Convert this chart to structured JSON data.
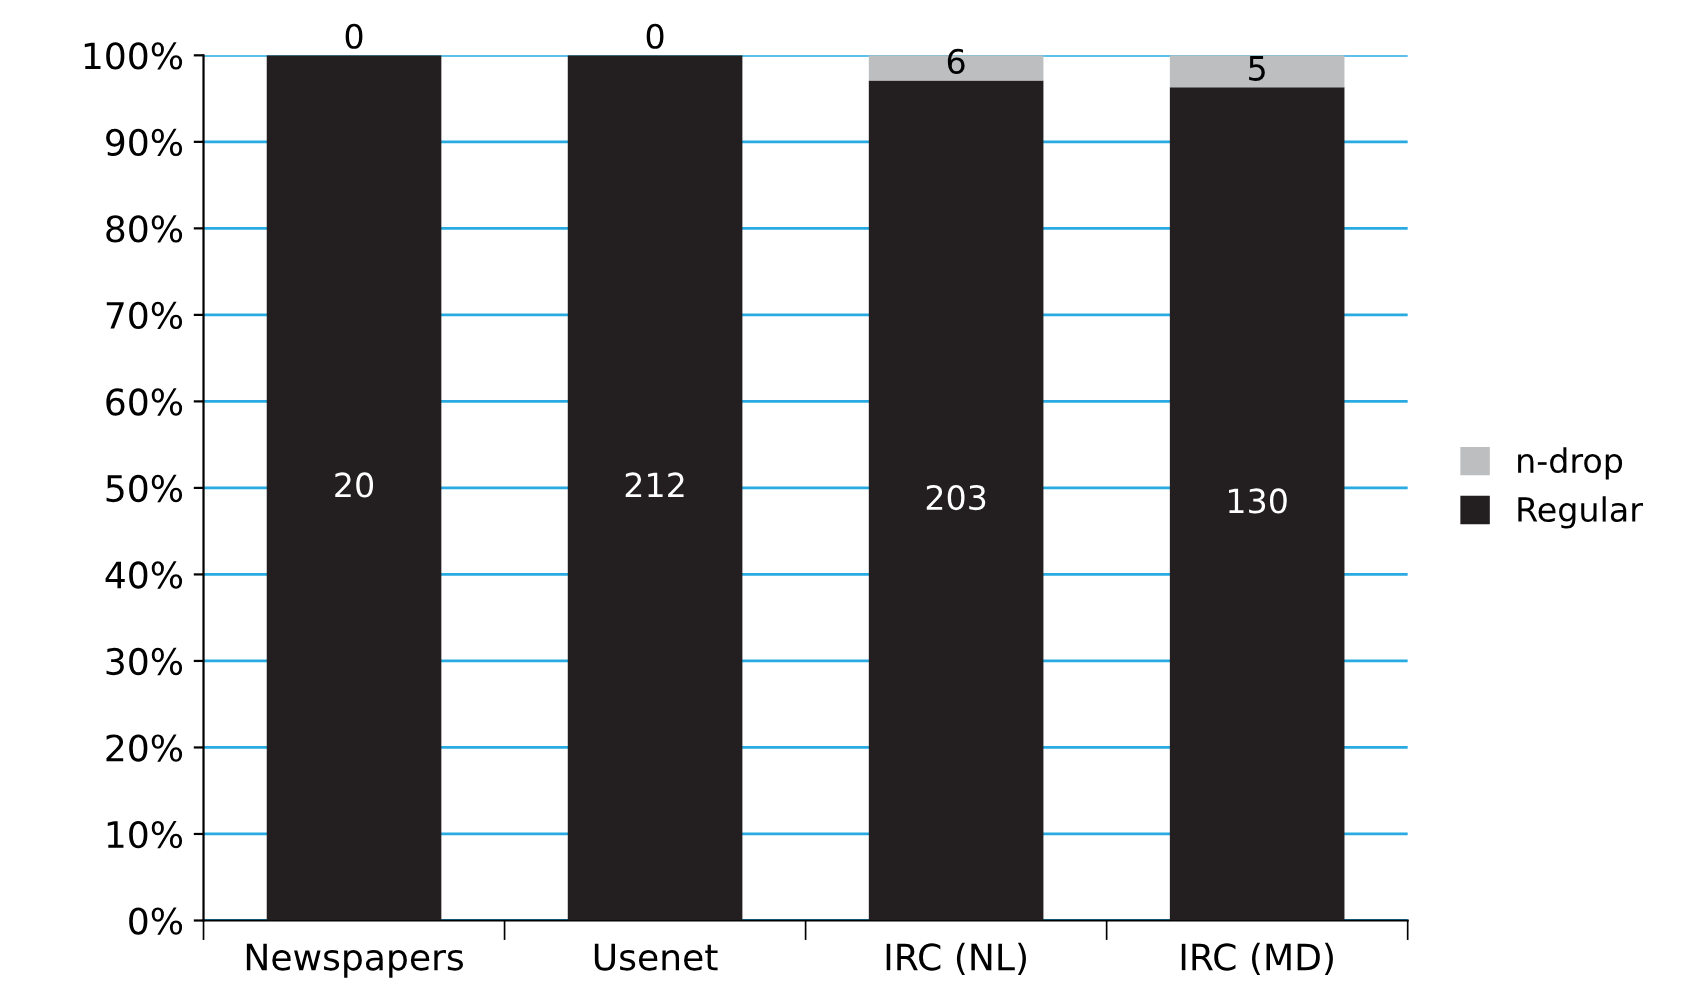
{
  "chart_data": {
    "type": "bar",
    "stacked": true,
    "categories": [
      "Newspapers",
      "Usenet",
      "IRC (NL)",
      "IRC (MD)"
    ],
    "series": [
      {
        "name": "Regular",
        "color": "#231f20",
        "values": [
          100,
          100,
          97.1,
          96.3
        ]
      },
      {
        "name": "n-drop",
        "color": "#bcbec0",
        "values": [
          0,
          0,
          2.9,
          3.7
        ]
      }
    ],
    "annotations": [
      "20",
      "212",
      "203",
      "130",
      "0",
      "0",
      "6",
      "5"
    ],
    "ylim": [
      0,
      100
    ],
    "yticks": [
      {
        "value": 0,
        "label": "0%"
      },
      {
        "value": 10,
        "label": "10%"
      },
      {
        "value": 20,
        "label": "20%"
      },
      {
        "value": 30,
        "label": "30%"
      },
      {
        "value": 40,
        "label": "40%"
      },
      {
        "value": 50,
        "label": "50%"
      },
      {
        "value": 60,
        "label": "60%"
      },
      {
        "value": 70,
        "label": "70%"
      },
      {
        "value": 80,
        "label": "80%"
      },
      {
        "value": 90,
        "label": "90%"
      },
      {
        "value": 100,
        "label": "100%"
      }
    ],
    "grid": "y",
    "legend": "right"
  }
}
